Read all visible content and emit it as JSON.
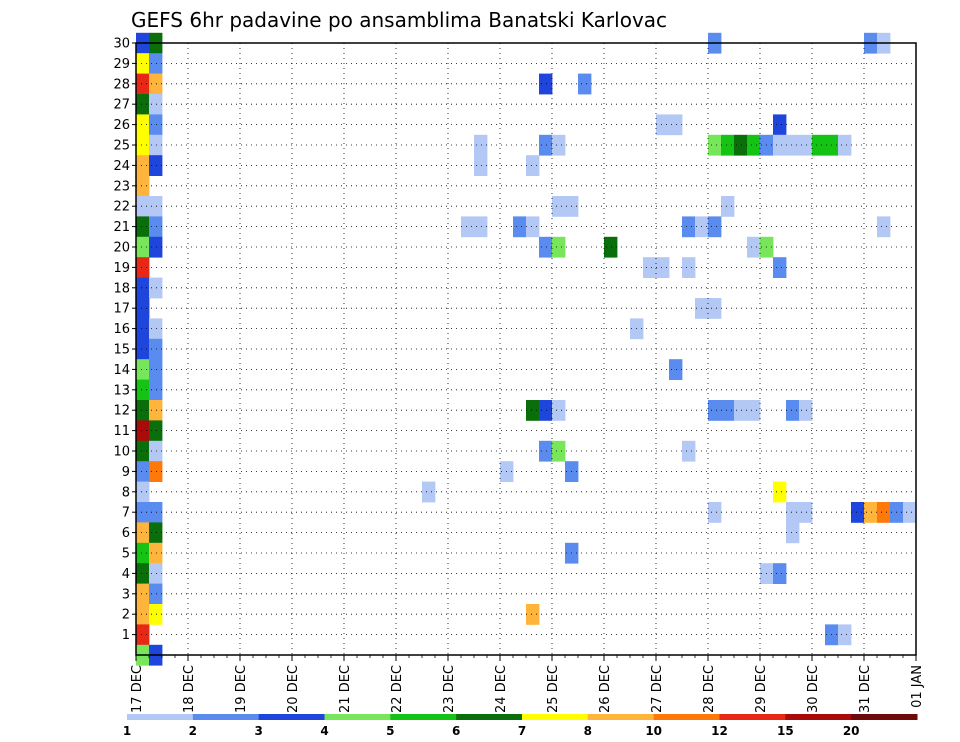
{
  "chart_data": {
    "type": "heatmap",
    "title": "GEFS 6hr padavine po ansamblima Banatski Karlovac",
    "x_tick_labels": [
      "17 DEC",
      "18 DEC",
      "19 DEC",
      "20 DEC",
      "21 DEC",
      "22 DEC",
      "23 DEC",
      "24 DEC",
      "25 DEC",
      "26 DEC",
      "27 DEC",
      "28 DEC",
      "29 DEC",
      "30 DEC",
      "31 DEC",
      "01 JAN"
    ],
    "y_tick_labels": [
      "1",
      "2",
      "3",
      "4",
      "5",
      "6",
      "7",
      "8",
      "9",
      "10",
      "11",
      "12",
      "13",
      "14",
      "15",
      "16",
      "17",
      "18",
      "19",
      "20",
      "21",
      "22",
      "23",
      "24",
      "25",
      "26",
      "27",
      "28",
      "29",
      "30"
    ],
    "x_unit": "day index from 17 DEC 00 UTC, 6-hourly steps",
    "ylim": [
      0,
      30
    ],
    "xlim": [
      0,
      15
    ],
    "grid": "dotted",
    "colorbar": {
      "labels": [
        "1",
        "2",
        "3",
        "4",
        "5",
        "6",
        "7",
        "8",
        "10",
        "12",
        "15",
        "20"
      ],
      "colors": [
        "#b4c8f5",
        "#5a8cf0",
        "#1e46dc",
        "#78e65a",
        "#14c314",
        "#0a6e0a",
        "#ffff00",
        "#ffb43c",
        "#ff780a",
        "#e62814",
        "#aa0a0a",
        "#6e0a0a"
      ]
    },
    "cells": [
      {
        "member": 30,
        "day": 0.0,
        "color": "#1e46dc"
      },
      {
        "member": 30,
        "day": 0.25,
        "color": "#0a6e0a"
      },
      {
        "member": 30,
        "day": 11.0,
        "color": "#5a8cf0"
      },
      {
        "member": 30,
        "day": 14.0,
        "color": "#5a8cf0"
      },
      {
        "member": 30,
        "day": 14.25,
        "color": "#b4c8f5"
      },
      {
        "member": 29,
        "day": 0.0,
        "color": "#ffff00"
      },
      {
        "member": 29,
        "day": 0.25,
        "color": "#5a8cf0"
      },
      {
        "member": 28,
        "day": 0.0,
        "color": "#e62814"
      },
      {
        "member": 28,
        "day": 0.25,
        "color": "#ffb43c"
      },
      {
        "member": 28,
        "day": 7.75,
        "color": "#1e46dc"
      },
      {
        "member": 28,
        "day": 8.5,
        "color": "#5a8cf0"
      },
      {
        "member": 27,
        "day": 0.0,
        "color": "#0a6e0a"
      },
      {
        "member": 27,
        "day": 0.25,
        "color": "#b4c8f5"
      },
      {
        "member": 26,
        "day": 0.0,
        "color": "#ffff00"
      },
      {
        "member": 26,
        "day": 0.25,
        "color": "#5a8cf0"
      },
      {
        "member": 26,
        "day": 10.0,
        "color": "#b4c8f5"
      },
      {
        "member": 26,
        "day": 10.25,
        "color": "#b4c8f5"
      },
      {
        "member": 26,
        "day": 12.25,
        "color": "#1e46dc"
      },
      {
        "member": 25,
        "day": 0.0,
        "color": "#ffff00"
      },
      {
        "member": 25,
        "day": 0.25,
        "color": "#b4c8f5"
      },
      {
        "member": 25,
        "day": 6.5,
        "color": "#b4c8f5"
      },
      {
        "member": 25,
        "day": 7.75,
        "color": "#5a8cf0"
      },
      {
        "member": 25,
        "day": 8.0,
        "color": "#b4c8f5"
      },
      {
        "member": 25,
        "day": 11.0,
        "color": "#78e65a"
      },
      {
        "member": 25,
        "day": 11.25,
        "color": "#14c314"
      },
      {
        "member": 25,
        "day": 11.5,
        "color": "#0a6e0a"
      },
      {
        "member": 25,
        "day": 11.75,
        "color": "#14c314"
      },
      {
        "member": 25,
        "day": 12.0,
        "color": "#5a8cf0"
      },
      {
        "member": 25,
        "day": 12.25,
        "color": "#b4c8f5"
      },
      {
        "member": 25,
        "day": 12.5,
        "color": "#b4c8f5"
      },
      {
        "member": 25,
        "day": 12.75,
        "color": "#b4c8f5"
      },
      {
        "member": 25,
        "day": 13.0,
        "color": "#14c314"
      },
      {
        "member": 25,
        "day": 13.25,
        "color": "#14c314"
      },
      {
        "member": 25,
        "day": 13.5,
        "color": "#b4c8f5"
      },
      {
        "member": 24,
        "day": 0.0,
        "color": "#ffb43c"
      },
      {
        "member": 24,
        "day": 0.25,
        "color": "#1e46dc"
      },
      {
        "member": 24,
        "day": 6.5,
        "color": "#b4c8f5"
      },
      {
        "member": 24,
        "day": 7.5,
        "color": "#b4c8f5"
      },
      {
        "member": 23,
        "day": 0.0,
        "color": "#ffb43c"
      },
      {
        "member": 22,
        "day": 0.0,
        "color": "#b4c8f5"
      },
      {
        "member": 22,
        "day": 0.25,
        "color": "#b4c8f5"
      },
      {
        "member": 22,
        "day": 8.0,
        "color": "#b4c8f5"
      },
      {
        "member": 22,
        "day": 8.25,
        "color": "#b4c8f5"
      },
      {
        "member": 22,
        "day": 11.25,
        "color": "#b4c8f5"
      },
      {
        "member": 21,
        "day": 0.0,
        "color": "#0a6e0a"
      },
      {
        "member": 21,
        "day": 0.25,
        "color": "#5a8cf0"
      },
      {
        "member": 21,
        "day": 6.25,
        "color": "#b4c8f5"
      },
      {
        "member": 21,
        "day": 6.5,
        "color": "#b4c8f5"
      },
      {
        "member": 21,
        "day": 7.25,
        "color": "#5a8cf0"
      },
      {
        "member": 21,
        "day": 7.5,
        "color": "#b4c8f5"
      },
      {
        "member": 21,
        "day": 10.5,
        "color": "#5a8cf0"
      },
      {
        "member": 21,
        "day": 10.75,
        "color": "#b4c8f5"
      },
      {
        "member": 21,
        "day": 11.0,
        "color": "#5a8cf0"
      },
      {
        "member": 21,
        "day": 14.25,
        "color": "#b4c8f5"
      },
      {
        "member": 20,
        "day": 0.0,
        "color": "#78e65a"
      },
      {
        "member": 20,
        "day": 0.25,
        "color": "#1e46dc"
      },
      {
        "member": 20,
        "day": 7.75,
        "color": "#5a8cf0"
      },
      {
        "member": 20,
        "day": 8.0,
        "color": "#78e65a"
      },
      {
        "member": 20,
        "day": 9.0,
        "color": "#0a6e0a"
      },
      {
        "member": 20,
        "day": 11.75,
        "color": "#b4c8f5"
      },
      {
        "member": 20,
        "day": 12.0,
        "color": "#78e65a"
      },
      {
        "member": 19,
        "day": 0.0,
        "color": "#e62814"
      },
      {
        "member": 19,
        "day": 9.75,
        "color": "#b4c8f5"
      },
      {
        "member": 19,
        "day": 10.0,
        "color": "#b4c8f5"
      },
      {
        "member": 19,
        "day": 10.5,
        "color": "#b4c8f5"
      },
      {
        "member": 19,
        "day": 12.25,
        "color": "#5a8cf0"
      },
      {
        "member": 18,
        "day": 0.0,
        "color": "#1e46dc"
      },
      {
        "member": 18,
        "day": 0.25,
        "color": "#b4c8f5"
      },
      {
        "member": 17,
        "day": 0.0,
        "color": "#1e46dc"
      },
      {
        "member": 17,
        "day": 10.75,
        "color": "#b4c8f5"
      },
      {
        "member": 17,
        "day": 11.0,
        "color": "#b4c8f5"
      },
      {
        "member": 16,
        "day": 0.0,
        "color": "#1e46dc"
      },
      {
        "member": 16,
        "day": 0.25,
        "color": "#b4c8f5"
      },
      {
        "member": 16,
        "day": 9.5,
        "color": "#b4c8f5"
      },
      {
        "member": 15,
        "day": 0.0,
        "color": "#1e46dc"
      },
      {
        "member": 15,
        "day": 0.25,
        "color": "#5a8cf0"
      },
      {
        "member": 14,
        "day": 0.0,
        "color": "#78e65a"
      },
      {
        "member": 14,
        "day": 0.25,
        "color": "#5a8cf0"
      },
      {
        "member": 14,
        "day": 10.25,
        "color": "#5a8cf0"
      },
      {
        "member": 13,
        "day": 0.0,
        "color": "#14c314"
      },
      {
        "member": 13,
        "day": 0.25,
        "color": "#5a8cf0"
      },
      {
        "member": 12,
        "day": 0.0,
        "color": "#0a6e0a"
      },
      {
        "member": 12,
        "day": 0.25,
        "color": "#ffb43c"
      },
      {
        "member": 12,
        "day": 7.5,
        "color": "#0a6e0a"
      },
      {
        "member": 12,
        "day": 7.75,
        "color": "#1e46dc"
      },
      {
        "member": 12,
        "day": 8.0,
        "color": "#b4c8f5"
      },
      {
        "member": 12,
        "day": 11.0,
        "color": "#5a8cf0"
      },
      {
        "member": 12,
        "day": 11.25,
        "color": "#5a8cf0"
      },
      {
        "member": 12,
        "day": 11.5,
        "color": "#b4c8f5"
      },
      {
        "member": 12,
        "day": 11.75,
        "color": "#b4c8f5"
      },
      {
        "member": 12,
        "day": 12.5,
        "color": "#5a8cf0"
      },
      {
        "member": 12,
        "day": 12.75,
        "color": "#b4c8f5"
      },
      {
        "member": 11,
        "day": 0.0,
        "color": "#aa0a0a"
      },
      {
        "member": 11,
        "day": 0.25,
        "color": "#0a6e0a"
      },
      {
        "member": 10,
        "day": 0.0,
        "color": "#0a6e0a"
      },
      {
        "member": 10,
        "day": 0.25,
        "color": "#b4c8f5"
      },
      {
        "member": 10,
        "day": 7.75,
        "color": "#5a8cf0"
      },
      {
        "member": 10,
        "day": 8.0,
        "color": "#78e65a"
      },
      {
        "member": 10,
        "day": 10.5,
        "color": "#b4c8f5"
      },
      {
        "member": 9,
        "day": 0.0,
        "color": "#5a8cf0"
      },
      {
        "member": 9,
        "day": 0.25,
        "color": "#ff780a"
      },
      {
        "member": 9,
        "day": 7.0,
        "color": "#b4c8f5"
      },
      {
        "member": 9,
        "day": 8.25,
        "color": "#5a8cf0"
      },
      {
        "member": 8,
        "day": 0.0,
        "color": "#b4c8f5"
      },
      {
        "member": 8,
        "day": 5.5,
        "color": "#b4c8f5"
      },
      {
        "member": 8,
        "day": 12.25,
        "color": "#ffff00"
      },
      {
        "member": 7,
        "day": 0.0,
        "color": "#5a8cf0"
      },
      {
        "member": 7,
        "day": 0.25,
        "color": "#5a8cf0"
      },
      {
        "member": 7,
        "day": 11.0,
        "color": "#b4c8f5"
      },
      {
        "member": 7,
        "day": 12.5,
        "color": "#b4c8f5"
      },
      {
        "member": 7,
        "day": 12.75,
        "color": "#b4c8f5"
      },
      {
        "member": 7,
        "day": 13.75,
        "color": "#1e46dc"
      },
      {
        "member": 7,
        "day": 14.0,
        "color": "#ffb43c"
      },
      {
        "member": 7,
        "day": 14.25,
        "color": "#ff780a"
      },
      {
        "member": 7,
        "day": 14.5,
        "color": "#5a8cf0"
      },
      {
        "member": 7,
        "day": 14.75,
        "color": "#b4c8f5"
      },
      {
        "member": 6,
        "day": 0.0,
        "color": "#ffb43c"
      },
      {
        "member": 6,
        "day": 0.25,
        "color": "#0a6e0a"
      },
      {
        "member": 6,
        "day": 12.5,
        "color": "#b4c8f5"
      },
      {
        "member": 5,
        "day": 0.0,
        "color": "#14c314"
      },
      {
        "member": 5,
        "day": 0.25,
        "color": "#ffb43c"
      },
      {
        "member": 5,
        "day": 8.25,
        "color": "#5a8cf0"
      },
      {
        "member": 4,
        "day": 0.0,
        "color": "#0a6e0a"
      },
      {
        "member": 4,
        "day": 0.25,
        "color": "#b4c8f5"
      },
      {
        "member": 4,
        "day": 12.0,
        "color": "#b4c8f5"
      },
      {
        "member": 4,
        "day": 12.25,
        "color": "#5a8cf0"
      },
      {
        "member": 3,
        "day": 0.0,
        "color": "#ffb43c"
      },
      {
        "member": 3,
        "day": 0.25,
        "color": "#5a8cf0"
      },
      {
        "member": 2,
        "day": 0.0,
        "color": "#ffb43c"
      },
      {
        "member": 2,
        "day": 0.25,
        "color": "#ffff00"
      },
      {
        "member": 2,
        "day": 7.5,
        "color": "#ffb43c"
      },
      {
        "member": 1,
        "day": 0.0,
        "color": "#e62814"
      },
      {
        "member": 1,
        "day": 13.25,
        "color": "#5a8cf0"
      },
      {
        "member": 1,
        "day": 13.5,
        "color": "#b4c8f5"
      },
      {
        "member": 0,
        "day": 0.0,
        "color": "#78e65a"
      },
      {
        "member": 0,
        "day": 0.25,
        "color": "#1e46dc"
      }
    ]
  }
}
